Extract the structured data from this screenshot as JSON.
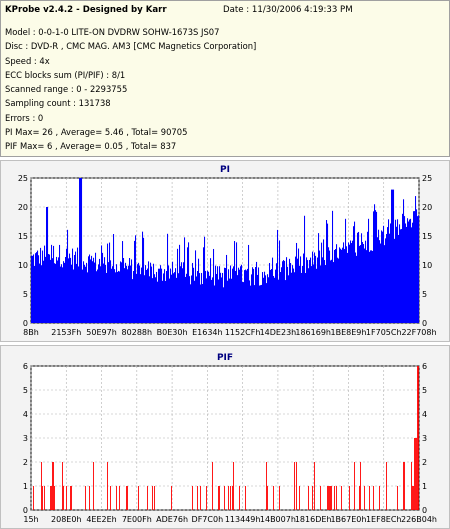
{
  "info": {
    "title": "KProbe v2.4.2 - Designed by Karr",
    "date": "Date : 11/30/2006 4:19:33 PM",
    "lines": [
      "Model : 0-0-1-0 LITE-ON DVDRW SOHW-1673S JS07",
      "Disc : DVD-R , CMC MAG. AM3 [CMC Magnetics Corporation]",
      "Speed : 4x",
      "ECC blocks sum (PI/PIF) : 8/1",
      "Scanned range : 0 - 2293755",
      "Sampling count : 131738",
      "Errors : 0",
      "PI Max= 26 , Average= 5.46 , Total= 90705",
      "PIF Max= 6 , Average= 0.05 , Total= 837"
    ]
  },
  "colors": {
    "pi_bar": "#0000ff",
    "pif_bar": "#ff0000",
    "plot_bg": "#ffffff",
    "panel_bg": "#f3f3f3",
    "info_bg": "#fcfce8"
  },
  "chart_data": [
    {
      "type": "bar",
      "title": "PI",
      "ylim": [
        0,
        25
      ],
      "yticks": [
        0,
        5,
        10,
        15,
        20,
        25
      ],
      "xticks": [
        "8Bh",
        "2153Fh",
        "50E97h",
        "80288h",
        "B0E30h",
        "E1634h",
        "1152CFh",
        "14DE23h",
        "186169h",
        "1BE8E9h",
        "1F705Ch",
        "22F708h"
      ],
      "xlim": [
        0,
        2293755
      ],
      "grid": true,
      "profile": [
        [
          0,
          11
        ],
        [
          0.05,
          12
        ],
        [
          0.12,
          11
        ],
        [
          0.2,
          10
        ],
        [
          0.3,
          9
        ],
        [
          0.4,
          8.5
        ],
        [
          0.5,
          8
        ],
        [
          0.6,
          8.5
        ],
        [
          0.7,
          10
        ],
        [
          0.8,
          12
        ],
        [
          0.9,
          15
        ],
        [
          1.0,
          18
        ]
      ],
      "spikes": [
        [
          0.126,
          26
        ],
        [
          0.04,
          20
        ],
        [
          0.93,
          23
        ]
      ],
      "max": 26,
      "average": 5.46
    },
    {
      "type": "bar",
      "title": "PIF",
      "ylim": [
        0,
        6
      ],
      "yticks": [
        0,
        1,
        2,
        3,
        4,
        5,
        6
      ],
      "xticks": [
        "15h",
        "208E0h",
        "4EE2Eh",
        "7E00Fh",
        "ADE76h",
        "DF7C0h",
        "113449h",
        "14B007h",
        "1816DEh",
        "1B67E0h",
        "1EF8ECh",
        "226B04h"
      ],
      "xlim": [
        0,
        2293755
      ],
      "grid": true,
      "spikes": [
        [
          0.995,
          6
        ],
        [
          0.99,
          3
        ]
      ],
      "max": 6,
      "average": 0.05
    }
  ]
}
